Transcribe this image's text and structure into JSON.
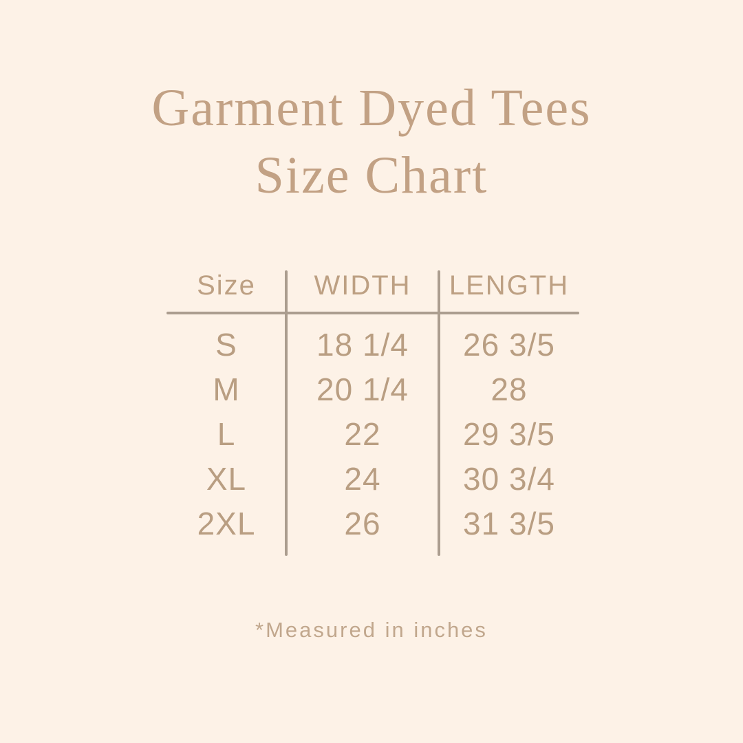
{
  "title": {
    "line1": "Garment Dyed Tees",
    "line2": "Size Chart"
  },
  "footnote": "*Measured in inches",
  "colors": {
    "background": "#fdf2e7",
    "title_text": "#c2a184",
    "table_text": "#b99e82",
    "rule_lines": "#ab9d8f",
    "footnote_text": "#c1a78d"
  },
  "chart_data": {
    "type": "table",
    "title": "Garment Dyed Tees Size Chart",
    "columns": [
      "Size",
      "WIDTH",
      "LENGTH"
    ],
    "rows": [
      [
        "S",
        "18 1/4",
        "26 3/5"
      ],
      [
        "M",
        "20 1/4",
        "28"
      ],
      [
        "L",
        "22",
        "29 3/5"
      ],
      [
        "XL",
        "24",
        "30 3/4"
      ],
      [
        "2XL",
        "26",
        "31 3/5"
      ]
    ],
    "units": "inches",
    "footnote": "*Measured in inches"
  }
}
